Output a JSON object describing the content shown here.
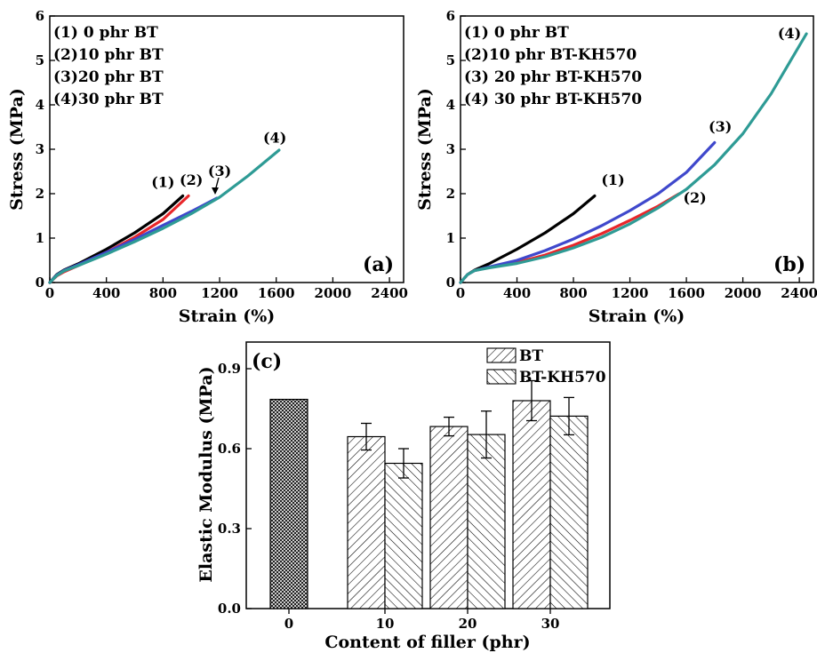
{
  "chart_data": [
    {
      "type": "line",
      "panel_label": "(a)",
      "xlabel": "Strain (%)",
      "ylabel": "Stress (MPa)",
      "xlim": [
        0,
        2500
      ],
      "ylim": [
        0,
        6
      ],
      "xticks": [
        0,
        400,
        800,
        1200,
        1600,
        2000,
        2400
      ],
      "yticks": [
        0,
        1,
        2,
        3,
        4,
        5,
        6
      ],
      "legend_position": "top-left",
      "legend": [
        "(1)  0 phr BT",
        "(2)10 phr BT",
        "(3)20 phr BT",
        "(4)30 phr BT"
      ],
      "series": [
        {
          "label": "(1)",
          "color": "#000000",
          "x": [
            0,
            50,
            100,
            200,
            400,
            600,
            800,
            940
          ],
          "y": [
            0,
            0.18,
            0.28,
            0.42,
            0.75,
            1.12,
            1.55,
            1.95
          ]
        },
        {
          "label": "(2)",
          "color": "#e8262a",
          "x": [
            0,
            50,
            100,
            200,
            400,
            600,
            800,
            980
          ],
          "y": [
            0,
            0.15,
            0.24,
            0.38,
            0.68,
            1.02,
            1.42,
            1.95
          ]
        },
        {
          "label": "(3)",
          "color": "#3f48cc",
          "x": [
            0,
            50,
            100,
            200,
            400,
            600,
            800,
            1000,
            1180
          ],
          "y": [
            0,
            0.17,
            0.27,
            0.4,
            0.68,
            0.97,
            1.29,
            1.6,
            1.9
          ]
        },
        {
          "label": "(4)",
          "color": "#2e9b95",
          "x": [
            0,
            50,
            100,
            200,
            400,
            600,
            800,
            1000,
            1200,
            1400,
            1620
          ],
          "y": [
            0,
            0.16,
            0.26,
            0.38,
            0.64,
            0.92,
            1.22,
            1.55,
            1.92,
            2.4,
            2.98
          ]
        }
      ],
      "annotations": [
        {
          "text": "(1)",
          "x": 800,
          "y": 2.15
        },
        {
          "text": "(2)",
          "x": 1000,
          "y": 2.2
        },
        {
          "text": "(3)",
          "x": 1200,
          "y": 2.4
        },
        {
          "text": "(4)",
          "x": 1590,
          "y": 3.15
        }
      ]
    },
    {
      "type": "line",
      "panel_label": "(b)",
      "xlabel": "Strain (%)",
      "ylabel": "Stress (MPa)",
      "xlim": [
        0,
        2500
      ],
      "ylim": [
        0,
        6
      ],
      "xticks": [
        0,
        400,
        800,
        1200,
        1600,
        2000,
        2400
      ],
      "yticks": [
        0,
        1,
        2,
        3,
        4,
        5,
        6
      ],
      "legend_position": "top-left",
      "legend": [
        "(1) 0 phr BT",
        "(2)10 phr BT-KH570",
        "(3) 20 phr BT-KH570",
        "(4) 30 phr BT-KH570"
      ],
      "series": [
        {
          "label": "(1)",
          "color": "#000000",
          "x": [
            0,
            50,
            100,
            200,
            400,
            600,
            800,
            950
          ],
          "y": [
            0,
            0.18,
            0.28,
            0.42,
            0.75,
            1.12,
            1.55,
            1.95
          ]
        },
        {
          "label": "(2)",
          "color": "#e8262a",
          "x": [
            0,
            50,
            100,
            200,
            400,
            600,
            800,
            1000,
            1200,
            1400,
            1550
          ],
          "y": [
            0,
            0.18,
            0.27,
            0.34,
            0.45,
            0.62,
            0.84,
            1.1,
            1.4,
            1.72,
            2.0
          ]
        },
        {
          "label": "(3)",
          "color": "#3f48cc",
          "x": [
            0,
            50,
            100,
            200,
            400,
            600,
            800,
            1000,
            1200,
            1400,
            1600,
            1800
          ],
          "y": [
            0,
            0.18,
            0.27,
            0.35,
            0.5,
            0.72,
            0.98,
            1.28,
            1.62,
            2.0,
            2.48,
            3.15
          ]
        },
        {
          "label": "(4)",
          "color": "#2e9b95",
          "x": [
            0,
            50,
            100,
            200,
            400,
            600,
            800,
            1000,
            1200,
            1400,
            1600,
            1800,
            2000,
            2200,
            2450
          ],
          "y": [
            0,
            0.18,
            0.27,
            0.33,
            0.43,
            0.58,
            0.78,
            1.02,
            1.32,
            1.68,
            2.1,
            2.65,
            3.35,
            4.25,
            5.6
          ]
        }
      ],
      "annotations": [
        {
          "text": "(1)",
          "x": 1080,
          "y": 2.2
        },
        {
          "text": "(2)",
          "x": 1660,
          "y": 1.8
        },
        {
          "text": "(3)",
          "x": 1840,
          "y": 3.4
        },
        {
          "text": "(4)",
          "x": 2330,
          "y": 5.5
        }
      ]
    },
    {
      "type": "bar",
      "panel_label": "(c)",
      "xlabel": "Content of filler (phr)",
      "ylabel": "Elastic Modulus (MPa)",
      "ylim": [
        0,
        1.0
      ],
      "yticks": [
        0.0,
        0.3,
        0.6,
        0.9
      ],
      "categories": [
        "0",
        "10",
        "20",
        "30"
      ],
      "legend_position": "top-right",
      "legend": [
        "BT",
        "BT-KH570"
      ],
      "series": [
        {
          "name": "BT",
          "values": [
            0.785,
            0.645,
            0.683,
            0.78
          ],
          "errors": [
            0,
            0.05,
            0.035,
            0.075
          ]
        },
        {
          "name": "BT-KH570",
          "values": [
            null,
            0.545,
            0.653,
            0.722
          ],
          "errors": [
            0,
            0.055,
            0.088,
            0.07
          ]
        }
      ]
    }
  ]
}
